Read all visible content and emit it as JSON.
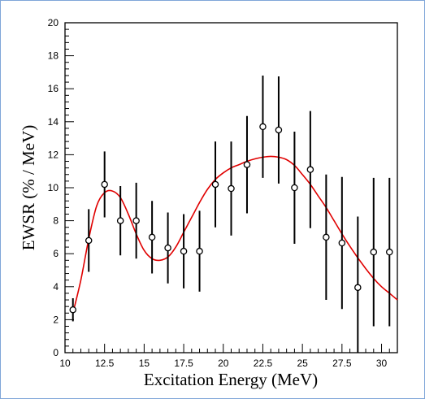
{
  "chart_data": {
    "type": "scatter",
    "title": "",
    "xlabel": "Excitation Energy (MeV)",
    "ylabel": "EWSR (% / MeV)",
    "xlim": [
      10,
      31
    ],
    "ylim": [
      0,
      20
    ],
    "x_ticks": [
      "10",
      "12.5",
      "15",
      "17.5",
      "20",
      "22.5",
      "25",
      "27.5",
      "30"
    ],
    "x_tick_values": [
      10,
      12.5,
      15,
      17.5,
      20,
      22.5,
      25,
      27.5,
      30
    ],
    "y_ticks": [
      "0",
      "2",
      "4",
      "6",
      "8",
      "10",
      "12",
      "14",
      "16",
      "18",
      "20"
    ],
    "y_tick_values": [
      0,
      2,
      4,
      6,
      8,
      10,
      12,
      14,
      16,
      18,
      20
    ],
    "grid": false,
    "series": [
      {
        "kind": "points_with_errorbars",
        "marker": "open-circle",
        "color": "#000000",
        "points": [
          {
            "x": 10.5,
            "y": 2.6,
            "err": 0.7
          },
          {
            "x": 11.5,
            "y": 6.8,
            "err": 1.9
          },
          {
            "x": 12.5,
            "y": 10.2,
            "err": 2.0
          },
          {
            "x": 13.5,
            "y": 8.0,
            "err": 2.1
          },
          {
            "x": 14.5,
            "y": 8.0,
            "err": 2.3
          },
          {
            "x": 15.5,
            "y": 7.0,
            "err": 2.2
          },
          {
            "x": 16.5,
            "y": 6.35,
            "err": 2.15
          },
          {
            "x": 17.5,
            "y": 6.15,
            "err": 2.25
          },
          {
            "x": 18.5,
            "y": 6.15,
            "err": 2.45
          },
          {
            "x": 19.5,
            "y": 10.2,
            "err": 2.6
          },
          {
            "x": 20.5,
            "y": 9.95,
            "err": 2.85
          },
          {
            "x": 21.5,
            "y": 11.4,
            "err": 2.95
          },
          {
            "x": 22.5,
            "y": 13.7,
            "err": 3.1
          },
          {
            "x": 23.5,
            "y": 13.5,
            "err": 3.25
          },
          {
            "x": 24.5,
            "y": 10.0,
            "err": 3.4
          },
          {
            "x": 25.5,
            "y": 11.1,
            "err": 3.55
          },
          {
            "x": 26.5,
            "y": 7.0,
            "err": 3.8
          },
          {
            "x": 27.5,
            "y": 6.65,
            "err": 4.0
          },
          {
            "x": 28.5,
            "y": 3.95,
            "err": 4.3
          },
          {
            "x": 29.5,
            "y": 6.1,
            "err": 4.5
          },
          {
            "x": 30.5,
            "y": 6.1,
            "err": 4.5
          }
        ]
      },
      {
        "kind": "fit_curve",
        "color": "#e00000",
        "x": [
          10.5,
          11,
          11.5,
          12,
          12.5,
          13,
          13.5,
          14,
          14.5,
          15,
          15.5,
          16,
          16.5,
          17,
          17.5,
          18,
          18.5,
          19,
          19.5,
          20,
          20.5,
          21,
          21.5,
          22,
          22.5,
          23,
          23.5,
          24,
          24.5,
          25,
          25.5,
          26,
          26.5,
          27,
          27.5,
          28,
          28.5,
          29,
          29.5,
          30,
          30.5,
          31
        ],
        "y": [
          2.4,
          4.4,
          6.9,
          8.9,
          9.7,
          9.8,
          9.4,
          8.4,
          7.2,
          6.2,
          5.7,
          5.6,
          5.8,
          6.4,
          7.3,
          8.2,
          9.1,
          9.9,
          10.5,
          10.9,
          11.2,
          11.4,
          11.6,
          11.75,
          11.85,
          11.9,
          11.85,
          11.7,
          11.35,
          10.8,
          10.2,
          9.5,
          8.8,
          8.0,
          7.2,
          6.45,
          5.75,
          5.1,
          4.5,
          4.0,
          3.6,
          3.2
        ]
      }
    ]
  }
}
